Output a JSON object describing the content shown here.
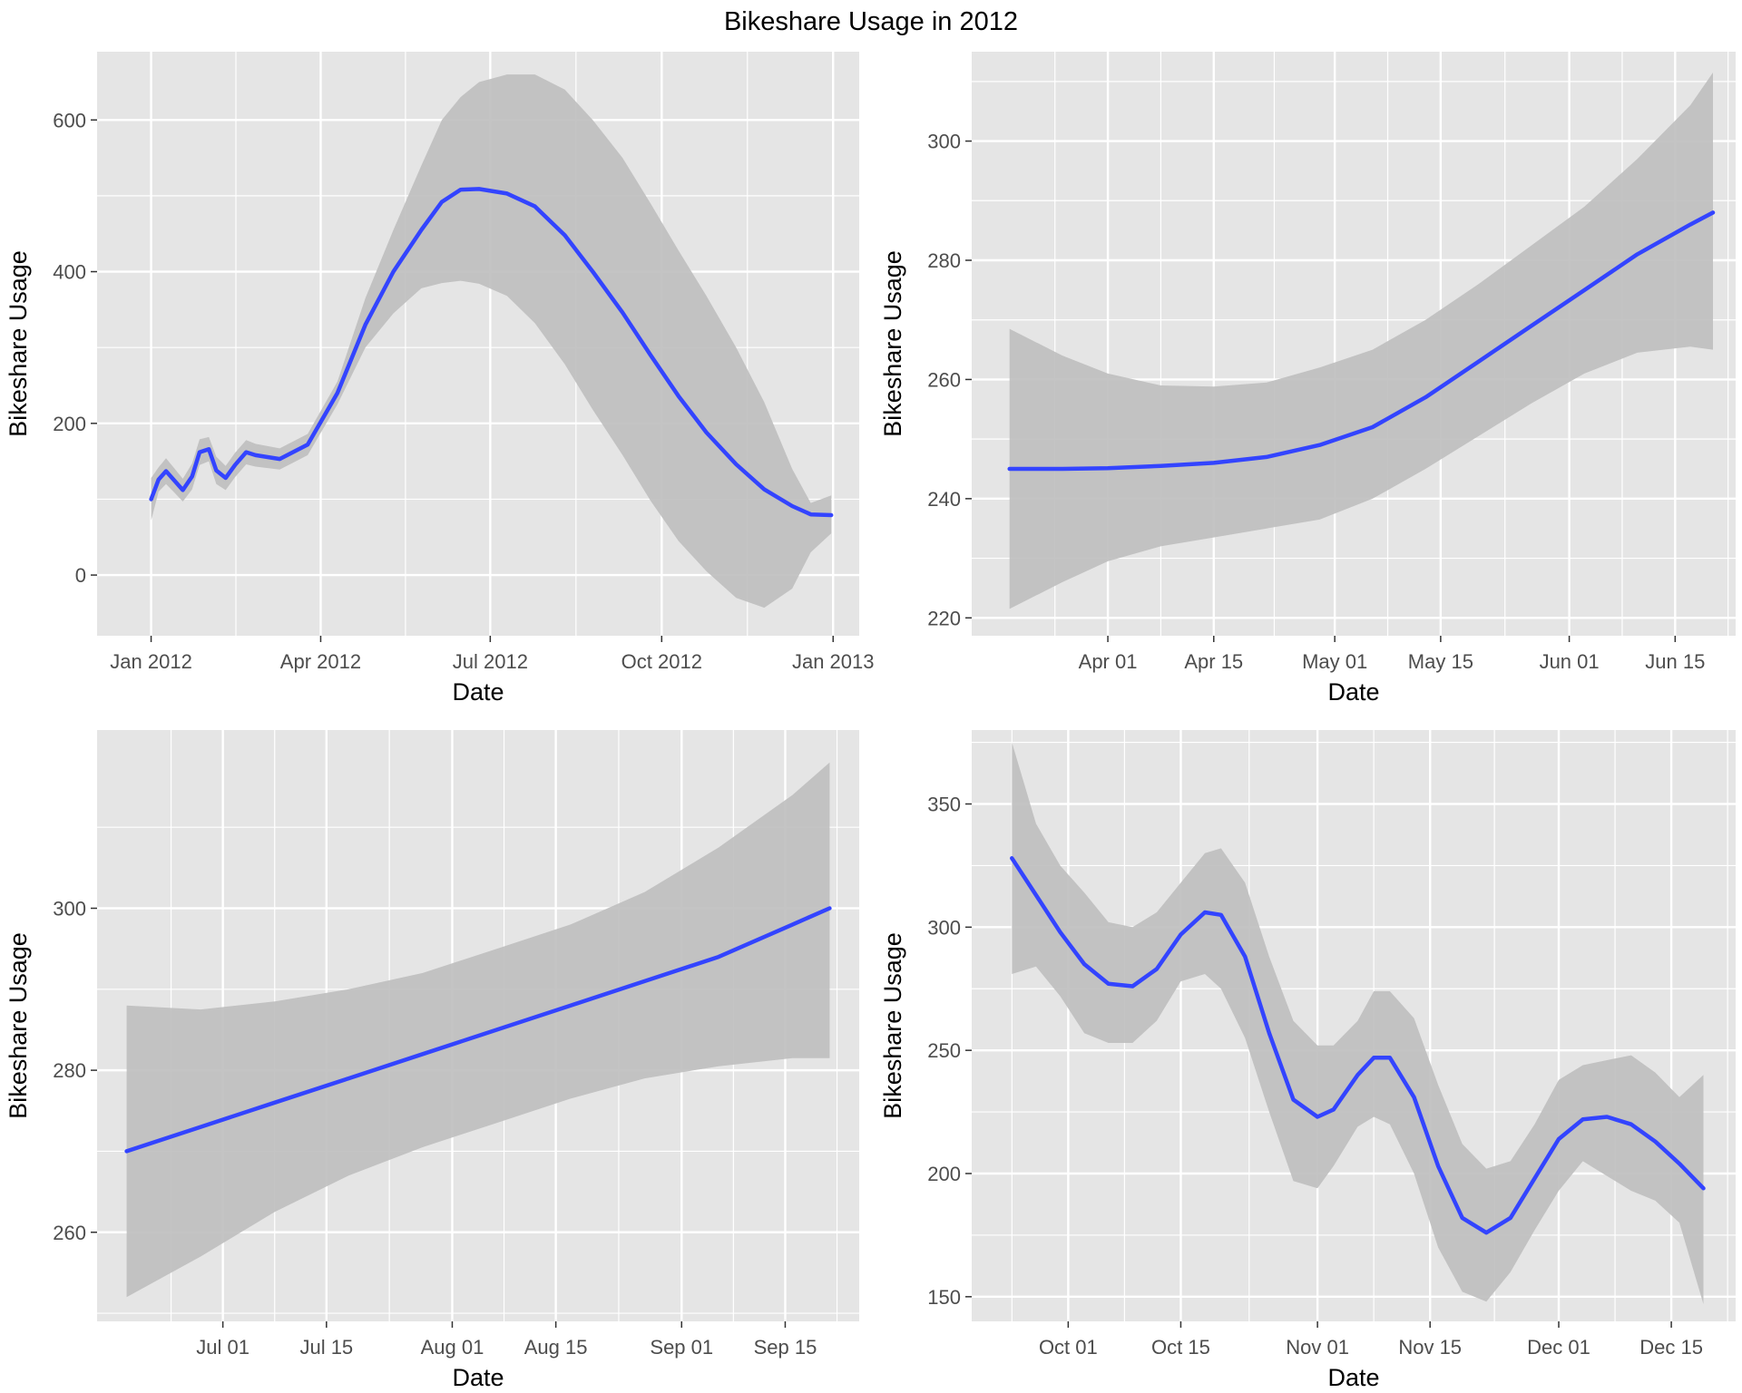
{
  "title": "Bikeshare Usage in 2012",
  "colors": {
    "panel_bg": "#e5e5e5",
    "grid": "#ffffff",
    "line": "#3344ff",
    "band": "#bebebe",
    "tick_text": "#4d4d4d"
  },
  "chart_data": [
    {
      "type": "line",
      "xlabel": "Date",
      "ylabel": "Bikeshare Usage",
      "x_type": "date",
      "xlim": [
        "2011-12-03",
        "2013-01-15"
      ],
      "ylim": [
        -80,
        690
      ],
      "x_ticks": [
        {
          "value": "2012-01-01",
          "label": "Jan 2012"
        },
        {
          "value": "2012-04-01",
          "label": "Apr 2012"
        },
        {
          "value": "2012-07-01",
          "label": "Jul 2012"
        },
        {
          "value": "2012-10-01",
          "label": "Oct 2012"
        },
        {
          "value": "2013-01-01",
          "label": "Jan 2013"
        }
      ],
      "y_ticks": [
        0,
        200,
        400,
        600
      ],
      "series": [
        {
          "x": [
            "2012-01-01",
            "2012-01-05",
            "2012-01-09",
            "2012-01-13",
            "2012-01-18",
            "2012-01-23",
            "2012-01-27",
            "2012-02-01",
            "2012-02-05",
            "2012-02-10",
            "2012-02-15",
            "2012-02-21",
            "2012-02-26",
            "2012-03-10",
            "2012-03-25",
            "2012-04-10",
            "2012-04-25",
            "2012-05-10",
            "2012-05-25",
            "2012-06-05",
            "2012-06-15",
            "2012-06-25",
            "2012-07-10",
            "2012-07-25",
            "2012-08-10",
            "2012-08-25",
            "2012-09-10",
            "2012-09-25",
            "2012-10-10",
            "2012-10-25",
            "2012-11-10",
            "2012-11-25",
            "2012-12-10",
            "2012-12-20",
            "2012-12-31"
          ],
          "y": [
            100,
            126,
            137,
            126,
            112,
            130,
            162,
            166,
            138,
            128,
            145,
            162,
            158,
            153,
            172,
            240,
            330,
            400,
            455,
            492,
            508,
            509,
            503,
            486,
            448,
            400,
            346,
            290,
            236,
            188,
            146,
            113,
            91,
            80,
            79
          ],
          "lower": [
            72,
            110,
            120,
            110,
            97,
            113,
            145,
            150,
            120,
            112,
            129,
            146,
            143,
            139,
            158,
            225,
            300,
            345,
            378,
            385,
            388,
            384,
            368,
            332,
            278,
            218,
            158,
            98,
            45,
            5,
            -30,
            -43,
            -18,
            30,
            55
          ],
          "upper": [
            128,
            142,
            154,
            142,
            127,
            147,
            179,
            182,
            156,
            144,
            161,
            178,
            173,
            167,
            186,
            255,
            365,
            455,
            540,
            600,
            630,
            650,
            660,
            660,
            640,
            600,
            550,
            490,
            428,
            368,
            300,
            228,
            140,
            95,
            105
          ]
        }
      ]
    },
    {
      "type": "line",
      "xlabel": "Date",
      "ylabel": "Bikeshare Usage",
      "x_type": "date",
      "xlim": [
        "2012-03-14",
        "2012-06-23"
      ],
      "ylim": [
        217,
        315
      ],
      "x_ticks": [
        {
          "value": "2012-04-01",
          "label": "Apr 01"
        },
        {
          "value": "2012-04-15",
          "label": "Apr 15"
        },
        {
          "value": "2012-05-01",
          "label": "May 01"
        },
        {
          "value": "2012-05-15",
          "label": "May 15"
        },
        {
          "value": "2012-06-01",
          "label": "Jun 01"
        },
        {
          "value": "2012-06-15",
          "label": "Jun 15"
        }
      ],
      "y_ticks": [
        220,
        240,
        260,
        280,
        300
      ],
      "series": [
        {
          "x": [
            "2012-03-19",
            "2012-03-26",
            "2012-04-01",
            "2012-04-08",
            "2012-04-15",
            "2012-04-22",
            "2012-04-29",
            "2012-05-06",
            "2012-05-13",
            "2012-05-20",
            "2012-05-27",
            "2012-06-03",
            "2012-06-10",
            "2012-06-17",
            "2012-06-20"
          ],
          "y": [
            245,
            245,
            245.1,
            245.5,
            246,
            247,
            249,
            252,
            257,
            263,
            269,
            275,
            281,
            286,
            288
          ],
          "lower": [
            221.5,
            226,
            229.5,
            232,
            233.5,
            235,
            236.5,
            240,
            245,
            250.5,
            256,
            261,
            264.5,
            265.5,
            265
          ],
          "upper": [
            268.5,
            264,
            261,
            259,
            258.8,
            259.5,
            262,
            265,
            270,
            276,
            282.5,
            289,
            297,
            306,
            311.5
          ]
        }
      ]
    },
    {
      "type": "line",
      "xlabel": "Date",
      "ylabel": "Bikeshare Usage",
      "x_type": "date",
      "xlim": [
        "2012-06-14",
        "2012-09-25"
      ],
      "ylim": [
        249,
        322
      ],
      "x_ticks": [
        {
          "value": "2012-07-01",
          "label": "Jul 01"
        },
        {
          "value": "2012-07-15",
          "label": "Jul 15"
        },
        {
          "value": "2012-08-01",
          "label": "Aug 01"
        },
        {
          "value": "2012-08-15",
          "label": "Aug 15"
        },
        {
          "value": "2012-09-01",
          "label": "Sep 01"
        },
        {
          "value": "2012-09-15",
          "label": "Sep 15"
        }
      ],
      "y_ticks": [
        260,
        280,
        300
      ],
      "series": [
        {
          "x": [
            "2012-06-18",
            "2012-06-28",
            "2012-07-08",
            "2012-07-18",
            "2012-07-28",
            "2012-08-07",
            "2012-08-17",
            "2012-08-27",
            "2012-09-06",
            "2012-09-16",
            "2012-09-21"
          ],
          "y": [
            270,
            273,
            276,
            279,
            282,
            285,
            288,
            291,
            294,
            298,
            300
          ],
          "lower": [
            252,
            257,
            262.5,
            267,
            270.5,
            273.5,
            276.5,
            279,
            280.5,
            281.5,
            281.5
          ],
          "upper": [
            288,
            287.5,
            288.5,
            290,
            292,
            295,
            298,
            302,
            307.5,
            314,
            318
          ]
        }
      ]
    },
    {
      "type": "line",
      "xlabel": "Date",
      "ylabel": "Bikeshare Usage",
      "x_type": "date",
      "xlim": [
        "2012-09-19",
        "2012-12-23"
      ],
      "ylim": [
        140,
        380
      ],
      "x_ticks": [
        {
          "value": "2012-10-01",
          "label": "Oct 01"
        },
        {
          "value": "2012-10-15",
          "label": "Oct 15"
        },
        {
          "value": "2012-11-01",
          "label": "Nov 01"
        },
        {
          "value": "2012-11-15",
          "label": "Nov 15"
        },
        {
          "value": "2012-12-01",
          "label": "Dec 01"
        },
        {
          "value": "2012-12-15",
          "label": "Dec 15"
        }
      ],
      "y_ticks": [
        150,
        200,
        250,
        300,
        350
      ],
      "series": [
        {
          "x": [
            "2012-09-24",
            "2012-09-27",
            "2012-09-30",
            "2012-10-03",
            "2012-10-06",
            "2012-10-09",
            "2012-10-12",
            "2012-10-15",
            "2012-10-18",
            "2012-10-20",
            "2012-10-23",
            "2012-10-26",
            "2012-10-29",
            "2012-11-01",
            "2012-11-03",
            "2012-11-06",
            "2012-11-08",
            "2012-11-10",
            "2012-11-13",
            "2012-11-16",
            "2012-11-19",
            "2012-11-22",
            "2012-11-25",
            "2012-11-28",
            "2012-12-01",
            "2012-12-04",
            "2012-12-07",
            "2012-12-10",
            "2012-12-13",
            "2012-12-16",
            "2012-12-19"
          ],
          "y": [
            328,
            313,
            298,
            285,
            277,
            276,
            283,
            297,
            306,
            305,
            288,
            257,
            230,
            223,
            226,
            240,
            247,
            247,
            231,
            203,
            182,
            176,
            182,
            198,
            214,
            222,
            223,
            220,
            213,
            204,
            194
          ],
          "lower": [
            281,
            284,
            272,
            257,
            253,
            253,
            262,
            278,
            281,
            275,
            255,
            225,
            197,
            194,
            203,
            219,
            223,
            220,
            200,
            170,
            152,
            148,
            160,
            177,
            193,
            205,
            199,
            193,
            189,
            180,
            147
          ],
          "upper": [
            375,
            342,
            325,
            314,
            302,
            300,
            306,
            318,
            330,
            332,
            318,
            288,
            262,
            252,
            252,
            262,
            274,
            274,
            263,
            236,
            212,
            202,
            205,
            220,
            238,
            244,
            246,
            248,
            241,
            231,
            240
          ]
        }
      ]
    }
  ]
}
